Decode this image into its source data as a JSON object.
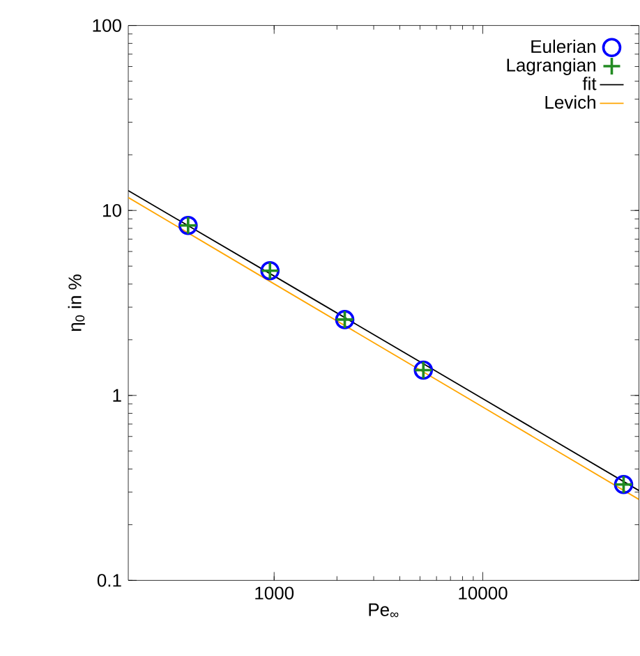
{
  "chart_data": {
    "type": "scatter",
    "xlabel": "Pe$_{∞}$",
    "ylabel": "η$_{0}$ in %",
    "x": [
      387,
      955,
      2180,
      5190,
      47300
    ],
    "series": [
      {
        "name": "Eulerian",
        "type": "scatter",
        "marker": "circle",
        "color": "#0000ff",
        "values": [
          8.3,
          4.72,
          2.57,
          1.37,
          0.33
        ]
      },
      {
        "name": "Lagrangian",
        "type": "scatter",
        "marker": "cross",
        "color": "#228b22",
        "values": [
          8.3,
          4.72,
          2.57,
          1.37,
          0.33
        ]
      },
      {
        "name": "fit",
        "type": "line",
        "color": "#000000",
        "x": [
          200,
          1000,
          10000,
          56000
        ],
        "values": [
          12.8,
          4.42,
          0.96,
          0.306
        ]
      },
      {
        "name": "Levich",
        "type": "line",
        "color": "#ffa500",
        "x": [
          200,
          1000,
          10000,
          56000
        ],
        "values": [
          11.75,
          4.01,
          0.865,
          0.274
        ]
      }
    ],
    "log": "xy",
    "xlim": [
      200,
      56000
    ],
    "ylim": [
      0.1,
      100
    ],
    "xticks": [
      1000,
      10000
    ],
    "yticks": [
      0.1,
      1,
      10,
      100
    ],
    "legend": "top right"
  }
}
